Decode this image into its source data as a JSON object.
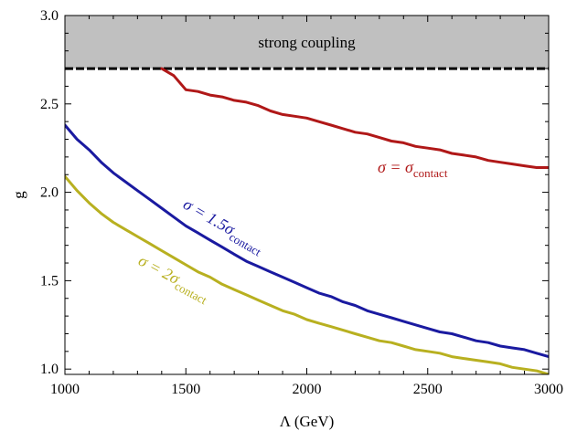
{
  "chart_data": {
    "type": "line",
    "xlabel": "Λ (GeV)",
    "ylabel": "g",
    "xlim": [
      1000,
      3000
    ],
    "ylim": [
      0.97,
      3.0
    ],
    "x_ticks": [
      "1000",
      "1500",
      "2000",
      "2500",
      "3000"
    ],
    "y_ticks": [
      "1.0",
      "1.5",
      "2.0",
      "2.5",
      "3.0"
    ],
    "grid": false,
    "band": {
      "label": "strong coupling",
      "y_from": 2.7,
      "y_to": 3.0,
      "color": "#c0c0c0",
      "boundary_style": "dashed"
    },
    "series": [
      {
        "name": "σ = σcontact",
        "label_main": "σ = σ",
        "label_sub": "contact",
        "color": "#b01818",
        "x": [
          1400,
          1450,
          1500,
          1550,
          1600,
          1650,
          1700,
          1750,
          1800,
          1850,
          1900,
          1950,
          2000,
          2050,
          2100,
          2150,
          2200,
          2250,
          2300,
          2350,
          2400,
          2450,
          2500,
          2550,
          2600,
          2650,
          2700,
          2750,
          2800,
          2850,
          2900,
          2950,
          3000
        ],
        "y": [
          2.7,
          2.66,
          2.58,
          2.57,
          2.55,
          2.54,
          2.52,
          2.51,
          2.49,
          2.46,
          2.44,
          2.43,
          2.42,
          2.4,
          2.38,
          2.36,
          2.34,
          2.33,
          2.31,
          2.29,
          2.28,
          2.26,
          2.25,
          2.24,
          2.22,
          2.21,
          2.2,
          2.18,
          2.17,
          2.16,
          2.15,
          2.14,
          2.14
        ]
      },
      {
        "name": "σ = 1.5σcontact",
        "label_main": "σ = 1.5σ",
        "label_sub": "contact",
        "color": "#1a1aa0",
        "x": [
          1000,
          1050,
          1100,
          1150,
          1200,
          1250,
          1300,
          1350,
          1400,
          1450,
          1500,
          1550,
          1600,
          1650,
          1700,
          1750,
          1800,
          1850,
          1900,
          1950,
          2000,
          2050,
          2100,
          2150,
          2200,
          2250,
          2300,
          2350,
          2400,
          2450,
          2500,
          2550,
          2600,
          2650,
          2700,
          2750,
          2800,
          2850,
          2900,
          2950,
          3000
        ],
        "y": [
          2.38,
          2.3,
          2.24,
          2.17,
          2.11,
          2.06,
          2.01,
          1.96,
          1.91,
          1.86,
          1.81,
          1.77,
          1.73,
          1.69,
          1.65,
          1.61,
          1.58,
          1.55,
          1.52,
          1.49,
          1.46,
          1.43,
          1.41,
          1.38,
          1.36,
          1.33,
          1.31,
          1.29,
          1.27,
          1.25,
          1.23,
          1.21,
          1.2,
          1.18,
          1.16,
          1.15,
          1.13,
          1.12,
          1.11,
          1.09,
          1.07
        ]
      },
      {
        "name": "σ = 2σcontact",
        "label_main": "σ = 2σ",
        "label_sub": "contact",
        "color": "#b8b020",
        "x": [
          1000,
          1050,
          1100,
          1150,
          1200,
          1250,
          1300,
          1350,
          1400,
          1450,
          1500,
          1550,
          1600,
          1650,
          1700,
          1750,
          1800,
          1850,
          1900,
          1950,
          2000,
          2050,
          2100,
          2150,
          2200,
          2250,
          2300,
          2350,
          2400,
          2450,
          2500,
          2550,
          2600,
          2650,
          2700,
          2750,
          2800,
          2850,
          2900,
          2950,
          3000
        ],
        "y": [
          2.09,
          2.01,
          1.94,
          1.88,
          1.83,
          1.79,
          1.75,
          1.71,
          1.67,
          1.63,
          1.59,
          1.55,
          1.52,
          1.48,
          1.45,
          1.42,
          1.39,
          1.36,
          1.33,
          1.31,
          1.28,
          1.26,
          1.24,
          1.22,
          1.2,
          1.18,
          1.16,
          1.15,
          1.13,
          1.11,
          1.1,
          1.09,
          1.07,
          1.06,
          1.05,
          1.04,
          1.03,
          1.01,
          1.0,
          0.99,
          0.97
        ]
      }
    ]
  }
}
